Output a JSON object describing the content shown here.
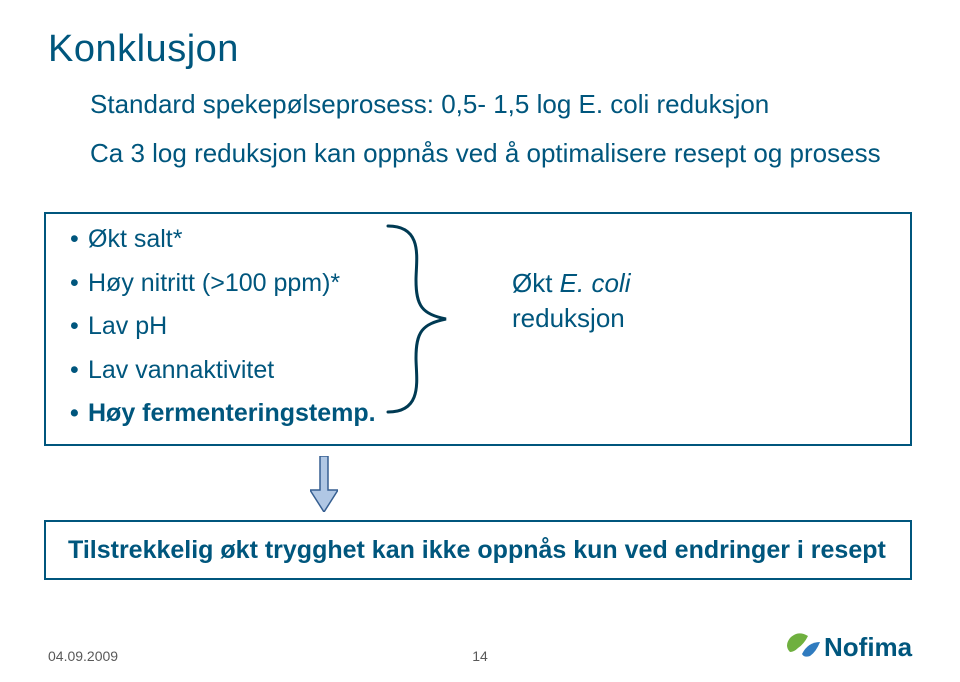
{
  "colors": {
    "title": "#00567d",
    "body": "#00567d",
    "box_border": "#00567d",
    "brace": "#003a53",
    "arrow_fill": "#b0c7e4",
    "arrow_stroke": "#365f91",
    "footer": "#595959",
    "logo_text": "#00567d",
    "logo_mark1": "#6fb03f",
    "logo_mark2": "#2f7bbf"
  },
  "title": "Konklusjon",
  "subtitle": "Standard spekepølseprosess: 0,5- 1,5 log E. coli reduksjon",
  "subtitle2": "Ca 3 log reduksjon kan oppnås ved å optimalisere resept og prosess",
  "bullets": [
    {
      "text": "Økt salt*",
      "bold": false
    },
    {
      "text": "Høy nitritt (>100 ppm)*",
      "bold": false
    },
    {
      "text": "Lav pH",
      "bold": false
    },
    {
      "text": "Lav vannaktivitet",
      "bold": false
    },
    {
      "text": "Høy fermenteringstemp.",
      "bold": true
    }
  ],
  "result_prefix": "Økt ",
  "result_italic": "E. coli",
  "result_suffix": "reduksjon",
  "box2_text": "Tilstrekkelig økt trygghet kan ikke oppnås kun ved endringer i resept",
  "footer_date": "04.09.2009",
  "page_number": "14",
  "logo_text": "Nofima"
}
